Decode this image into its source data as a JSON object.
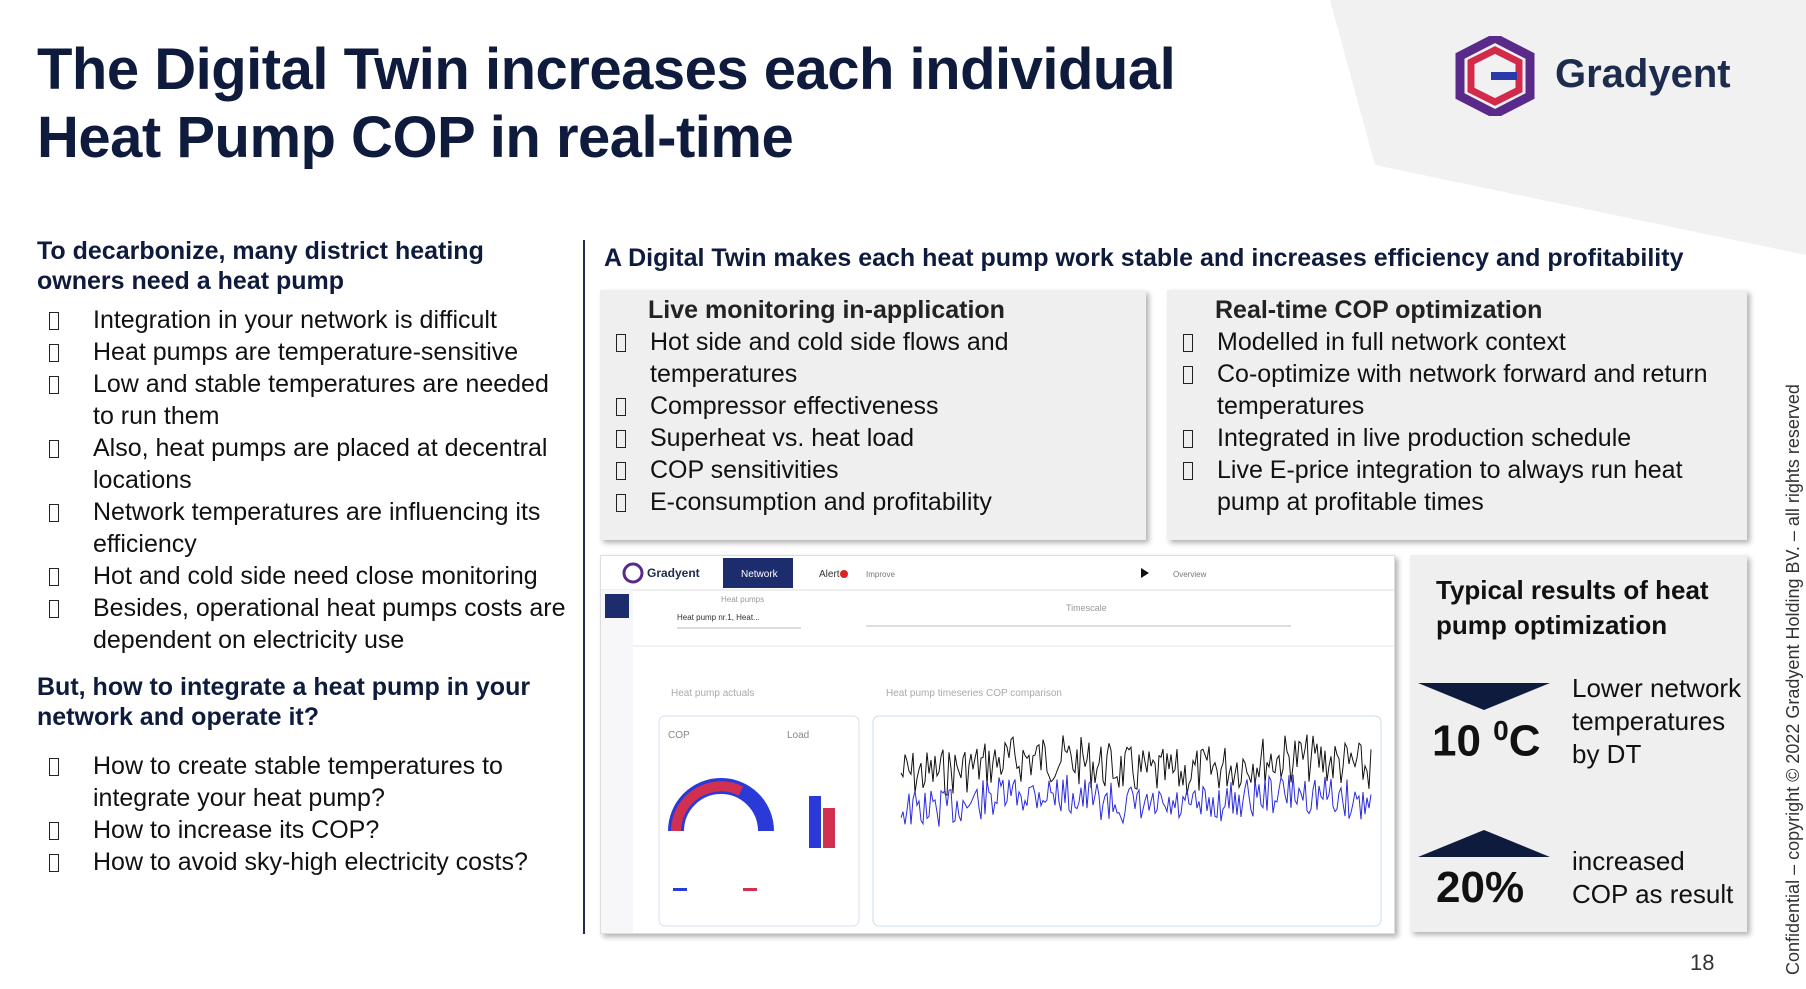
{
  "header": {
    "title_lines": [
      "The Digital Twin increases each individual",
      "Heat Pump COP in real-time"
    ],
    "logo_text": "Gradyent"
  },
  "left": {
    "heading1": "To decarbonize, many district heating owners need a heat pump",
    "bullets1": [
      "Integration in your network is difficult",
      "Heat pumps are temperature-sensitive",
      "Low and stable temperatures are needed to run them",
      "Also, heat pumps are placed at decentral locations",
      "Network temperatures are influencing its efficiency",
      "Hot and cold side need close monitoring",
      "Besides, operational heat pumps costs are dependent on electricity use"
    ],
    "heading2": "But, how to integrate a heat pump in your network and operate it?",
    "bullets2": [
      "How to create stable temperatures to integrate your heat pump?",
      "How to increase its COP?",
      "How to avoid sky-high electricity costs?"
    ]
  },
  "right": {
    "heading": "A Digital Twin makes each heat pump work stable and increases efficiency and profitability",
    "panels": [
      {
        "title": "Live monitoring in-application",
        "bullets": [
          "Hot side and cold side flows and temperatures",
          "Compressor effectiveness",
          "Superheat vs. heat load",
          "COP sensitivities",
          "E-consumption and profitability"
        ]
      },
      {
        "title": "Real-time COP optimization",
        "bullets": [
          "Modelled in full network context",
          "Co-optimize with network forward and return temperatures",
          "Integrated in live production schedule",
          "Live E-price integration to always run heat pump at profitable times"
        ]
      }
    ],
    "screenshot": {
      "logo": "Gradyent",
      "nav": [
        "Network",
        "Alert",
        "Improve"
      ],
      "overview": "Overview",
      "heat_pumps_label": "Heat pumps",
      "heat_pump_select": "Heat pump nr.1, Heat...",
      "timescale": "Timescale",
      "actuals_title": "Heat pump actuals",
      "cop_label": "COP",
      "load_label": "Load",
      "timeseries_title": "Heat pump timeseries COP comparison"
    },
    "results": {
      "title": "Typical results of heat pump optimization",
      "items": [
        {
          "number": "10 ",
          "sup": "0",
          "suffix": "C",
          "text": "Lower network temperatures by DT"
        },
        {
          "number": "20%",
          "sup": "",
          "suffix": "",
          "text": "increased COP as result"
        }
      ]
    }
  },
  "footer": {
    "page_number": "18",
    "confidential": "Confidential – copyright © 2022 Gradyent Holding BV. – all rights reserved"
  }
}
